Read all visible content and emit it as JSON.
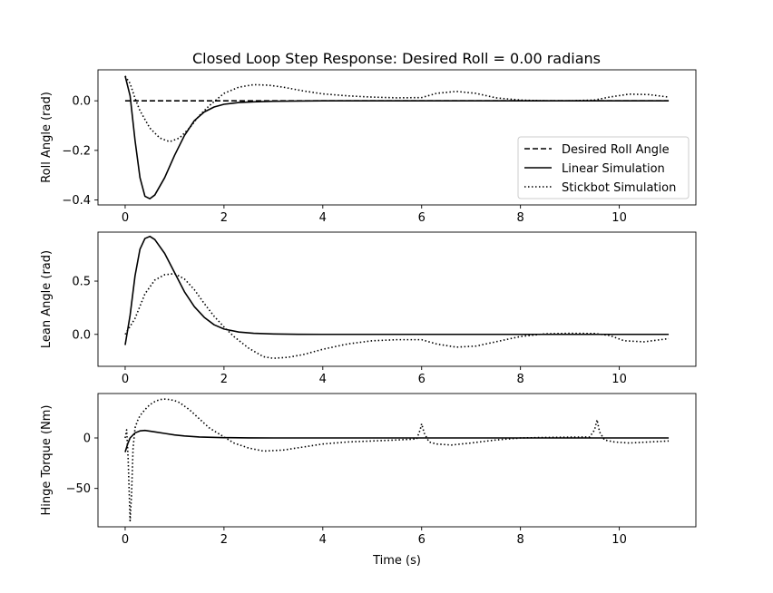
{
  "chart_data": [
    {
      "type": "line",
      "title": "Closed Loop Step Response: Desired Roll = 0.00 radians",
      "xlabel": "",
      "ylabel": "Roll Angle (rad)",
      "xlim": [
        -0.55,
        11.55
      ],
      "ylim": [
        -0.42,
        0.125
      ],
      "xticks": [
        0,
        2,
        4,
        6,
        8,
        10
      ],
      "yticks": [
        0.0,
        -0.2,
        -0.4
      ],
      "ytick_labels": [
        "0.0",
        "−0.2",
        "−0.4"
      ],
      "grid": false,
      "legend": "lower-right",
      "series": [
        {
          "name": "Desired Roll Angle",
          "style": "dashed",
          "x": [
            0,
            11
          ],
          "y": [
            0,
            0
          ]
        },
        {
          "name": "Linear Simulation",
          "style": "solid",
          "x": [
            0,
            0.1,
            0.2,
            0.3,
            0.4,
            0.5,
            0.6,
            0.8,
            1.0,
            1.2,
            1.4,
            1.6,
            1.8,
            2.0,
            2.3,
            2.6,
            3.0,
            3.5,
            4.0,
            5,
            6,
            8,
            11
          ],
          "y": [
            0.1,
            0.02,
            -0.16,
            -0.31,
            -0.385,
            -0.395,
            -0.38,
            -0.31,
            -0.22,
            -0.14,
            -0.08,
            -0.045,
            -0.025,
            -0.014,
            -0.007,
            -0.004,
            -0.002,
            -0.001,
            0,
            0,
            0,
            0,
            0
          ]
        },
        {
          "name": "Stickbot Simulation",
          "style": "dotted",
          "x": [
            0,
            0.1,
            0.2,
            0.3,
            0.5,
            0.7,
            0.9,
            1.1,
            1.3,
            1.5,
            1.7,
            2.0,
            2.3,
            2.6,
            2.9,
            3.2,
            3.6,
            4.0,
            4.5,
            5.0,
            5.5,
            6.0,
            6.3,
            6.7,
            7.1,
            7.5,
            8.0,
            8.5,
            9.0,
            9.5,
            9.8,
            10.2,
            10.6,
            11.0
          ],
          "y": [
            0.1,
            0.07,
            0.01,
            -0.04,
            -0.11,
            -0.15,
            -0.165,
            -0.15,
            -0.11,
            -0.06,
            -0.02,
            0.03,
            0.055,
            0.065,
            0.063,
            0.055,
            0.04,
            0.028,
            0.02,
            0.015,
            0.012,
            0.013,
            0.03,
            0.038,
            0.03,
            0.012,
            0.003,
            0.0,
            0.0,
            0.003,
            0.015,
            0.027,
            0.025,
            0.015
          ]
        }
      ]
    },
    {
      "type": "line",
      "title": "",
      "xlabel": "",
      "ylabel": "Lean Angle (rad)",
      "xlim": [
        -0.55,
        11.55
      ],
      "ylim": [
        -0.3,
        0.96
      ],
      "xticks": [
        0,
        2,
        4,
        6,
        8,
        10
      ],
      "yticks": [
        0.5,
        0.0
      ],
      "ytick_labels": [
        "0.5",
        "0.0"
      ],
      "grid": false,
      "series": [
        {
          "name": "Linear Simulation",
          "style": "solid",
          "x": [
            0,
            0.1,
            0.2,
            0.3,
            0.4,
            0.5,
            0.6,
            0.8,
            1.0,
            1.2,
            1.4,
            1.6,
            1.8,
            2.0,
            2.3,
            2.6,
            3.0,
            3.5,
            4.0,
            5,
            6,
            8,
            11
          ],
          "y": [
            -0.1,
            0.18,
            0.55,
            0.8,
            0.9,
            0.92,
            0.89,
            0.76,
            0.58,
            0.4,
            0.26,
            0.16,
            0.09,
            0.05,
            0.022,
            0.01,
            0.004,
            0.001,
            0,
            0,
            0,
            0,
            0
          ]
        },
        {
          "name": "Stickbot Simulation",
          "style": "dotted",
          "x": [
            0,
            0.2,
            0.4,
            0.6,
            0.8,
            1.0,
            1.2,
            1.4,
            1.6,
            1.8,
            2.0,
            2.2,
            2.5,
            2.8,
            3.0,
            3.3,
            3.6,
            4.0,
            4.5,
            5.0,
            5.5,
            6.0,
            6.3,
            6.7,
            7.1,
            7.5,
            8.0,
            8.5,
            9.0,
            9.5,
            9.8,
            10.1,
            10.5,
            11.0
          ],
          "y": [
            0.0,
            0.15,
            0.38,
            0.51,
            0.56,
            0.57,
            0.52,
            0.42,
            0.29,
            0.17,
            0.07,
            -0.02,
            -0.13,
            -0.21,
            -0.225,
            -0.215,
            -0.19,
            -0.14,
            -0.09,
            -0.06,
            -0.05,
            -0.05,
            -0.09,
            -0.12,
            -0.11,
            -0.07,
            -0.02,
            0.005,
            0.01,
            0.008,
            -0.01,
            -0.06,
            -0.07,
            -0.04
          ]
        }
      ]
    },
    {
      "type": "line",
      "title": "",
      "xlabel": "Time (s)",
      "ylabel": "Hinge Torque (Nm)",
      "xlim": [
        -0.55,
        11.55
      ],
      "ylim": [
        -88,
        44
      ],
      "xticks": [
        0,
        2,
        4,
        6,
        8,
        10
      ],
      "yticks": [
        0,
        -50
      ],
      "ytick_labels": [
        "0",
        "−50"
      ],
      "grid": false,
      "series": [
        {
          "name": "Linear Simulation",
          "style": "solid",
          "x": [
            0,
            0.05,
            0.1,
            0.2,
            0.3,
            0.4,
            0.6,
            0.8,
            1.0,
            1.2,
            1.5,
            2.0,
            2.5,
            3.0,
            4.0,
            6,
            8,
            11
          ],
          "y": [
            -14,
            -6,
            0,
            5,
            7,
            7.5,
            6,
            4.5,
            3,
            2,
            1,
            0.3,
            0.1,
            0,
            0,
            0,
            0,
            0
          ]
        },
        {
          "name": "Stickbot Simulation",
          "style": "dotted",
          "x": [
            0,
            0.03,
            0.06,
            0.1,
            0.13,
            0.16,
            0.2,
            0.25,
            0.3,
            0.4,
            0.5,
            0.6,
            0.7,
            0.8,
            0.9,
            1.0,
            1.1,
            1.3,
            1.5,
            1.7,
            2.0,
            2.2,
            2.5,
            2.8,
            3.2,
            3.6,
            4.0,
            4.5,
            5.0,
            5.5,
            5.9,
            5.97,
            6.0,
            6.05,
            6.15,
            6.3,
            6.6,
            7.0,
            7.5,
            8.0,
            8.5,
            9.0,
            9.4,
            9.5,
            9.55,
            9.6,
            9.7,
            9.9,
            10.2,
            10.6,
            11.0
          ],
          "y": [
            0,
            8,
            -20,
            -82,
            -55,
            -10,
            10,
            17,
            22,
            28,
            33,
            36,
            38,
            38.5,
            38,
            37,
            35,
            28,
            19,
            10,
            1,
            -5,
            -10,
            -13,
            -12,
            -9,
            -6,
            -4,
            -3,
            -2,
            -1,
            8,
            14,
            5,
            -4,
            -6,
            -7,
            -5,
            -2,
            0,
            0.5,
            0.8,
            1,
            8,
            18,
            6,
            -2,
            -4,
            -5,
            -4,
            -3
          ]
        }
      ]
    }
  ]
}
